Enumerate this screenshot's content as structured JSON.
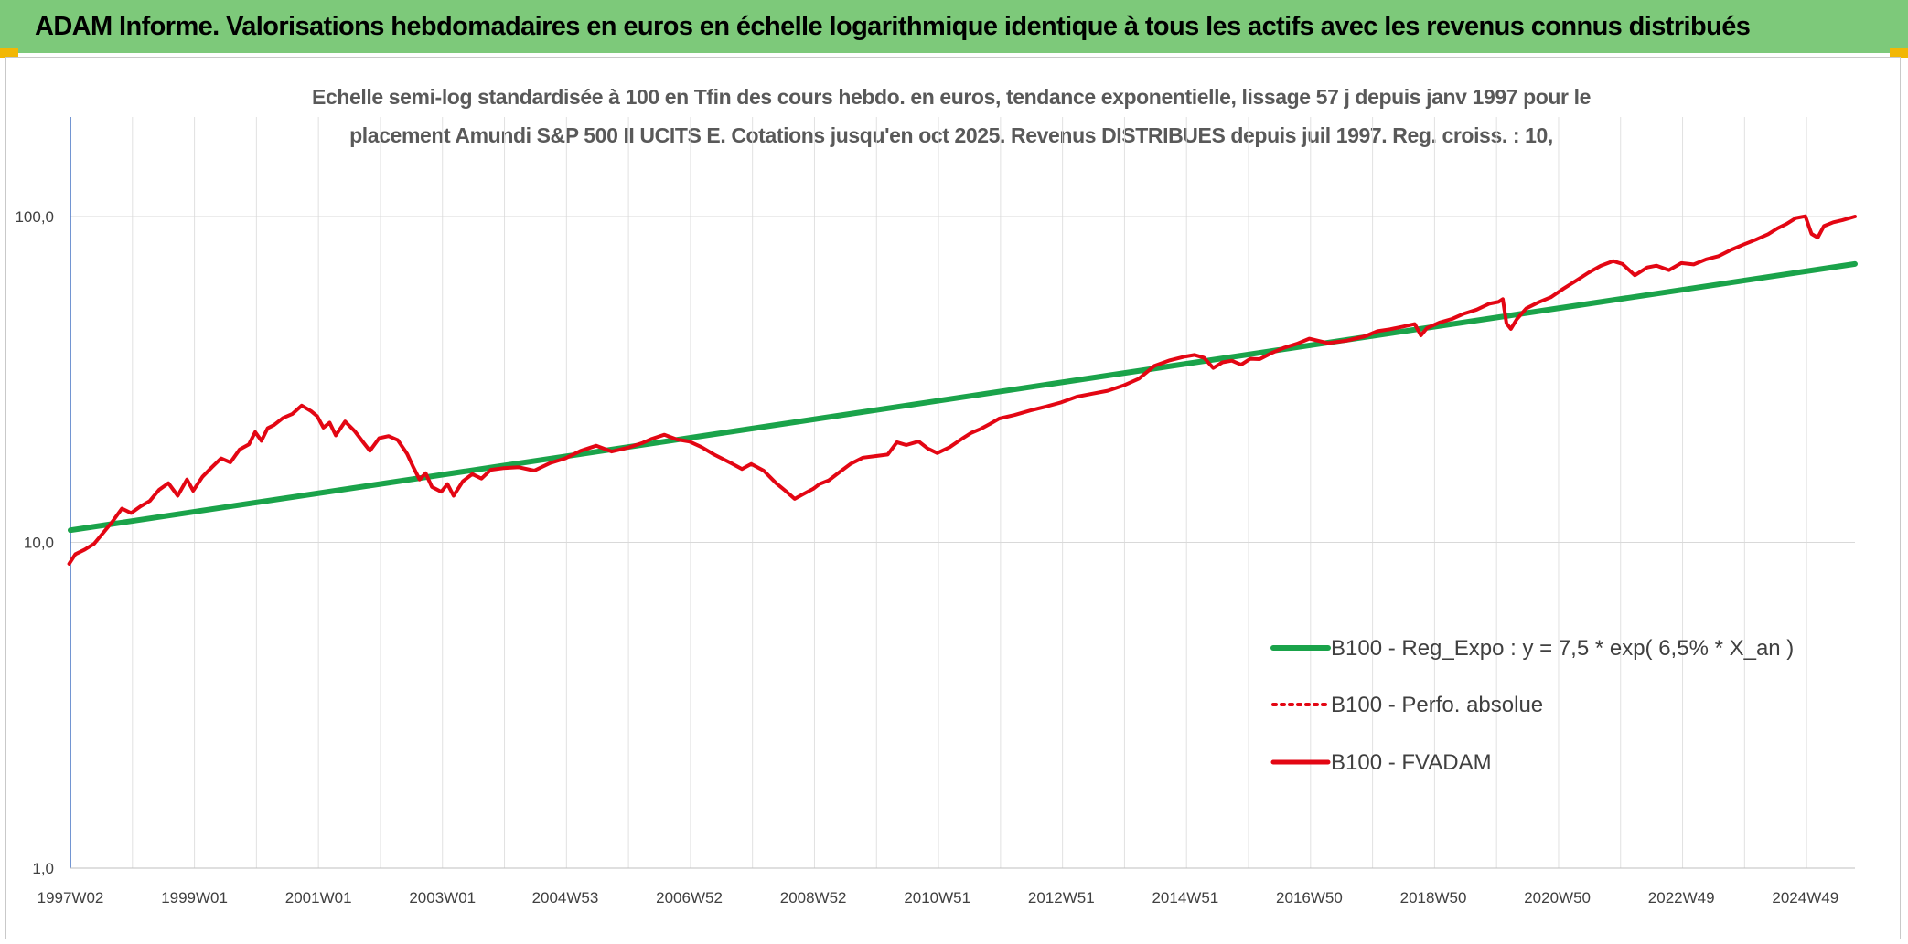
{
  "header": {
    "title": "ADAM Informe. Valorisations hebdomadaires en euros en échelle logarithmique identique à tous les actifs avec les revenus connus distribués"
  },
  "colors": {
    "header_bg": "#7dc97a",
    "corner_accent": "#f2b705",
    "series_main": "#e30613",
    "series_trend": "#1aa34a"
  },
  "chart_data": {
    "type": "line",
    "title_lines": [
      "Echelle semi-log standardisée à 100 en Tfin des cours hebdo. en euros, tendance exponentielle, lissage 57 j depuis janv 1997 pour le",
      "placement Amundi S&P 500 II UCITS E. Cotations jusqu'en oct 2025. Revenus DISTRIBUES depuis juil 1997. Reg. croiss. : 10,"
    ],
    "y_scale": "log",
    "ylim": [
      1,
      200
    ],
    "xlim": [
      1997.02,
      2025.8
    ],
    "y_ticks": [
      {
        "value": 1,
        "label": "1,0"
      },
      {
        "value": 10,
        "label": "10,0"
      },
      {
        "value": 100,
        "label": "100,0"
      }
    ],
    "x_ticks": [
      {
        "year": 1997.02,
        "label": "1997W02"
      },
      {
        "year": 1999.02,
        "label": "1999W01"
      },
      {
        "year": 2001.02,
        "label": "2001W01"
      },
      {
        "year": 2003.02,
        "label": "2003W01"
      },
      {
        "year": 2005.0,
        "label": "2004W53"
      },
      {
        "year": 2007.0,
        "label": "2006W52"
      },
      {
        "year": 2009.0,
        "label": "2008W52"
      },
      {
        "year": 2011.0,
        "label": "2010W51"
      },
      {
        "year": 2013.0,
        "label": "2012W51"
      },
      {
        "year": 2015.0,
        "label": "2014W51"
      },
      {
        "year": 2017.0,
        "label": "2016W50"
      },
      {
        "year": 2019.0,
        "label": "2018W50"
      },
      {
        "year": 2021.0,
        "label": "2020W50"
      },
      {
        "year": 2023.0,
        "label": "2022W49"
      },
      {
        "year": 2025.0,
        "label": "2024W49"
      }
    ],
    "grid": true,
    "legend_position": "right",
    "series": [
      {
        "name": "B100 - Reg_Expo : y = 7,5 * exp( 6,5% *  X_an )",
        "style": "solid-thick",
        "color": "#1aa34a",
        "x": [
          1997.02,
          2025.8
        ],
        "y": [
          10.9,
          71.5
        ]
      },
      {
        "name": "B100 - Perfo. absolue",
        "style": "dotted",
        "color": "#e30613",
        "x": [],
        "y": []
      },
      {
        "name": "B100 - FVADAM",
        "style": "solid",
        "color": "#e30613",
        "x": [
          1997.0,
          1997.1,
          1997.25,
          1997.4,
          1997.55,
          1997.7,
          1997.85,
          1998.0,
          1998.15,
          1998.3,
          1998.45,
          1998.6,
          1998.75,
          1998.9,
          1999.0,
          1999.15,
          1999.3,
          1999.45,
          1999.6,
          1999.75,
          1999.9,
          2000.0,
          2000.1,
          2000.2,
          2000.3,
          2000.45,
          2000.6,
          2000.75,
          2000.9,
          2001.0,
          2001.1,
          2001.2,
          2001.3,
          2001.45,
          2001.6,
          2001.75,
          2001.85,
          2002.0,
          2002.15,
          2002.3,
          2002.45,
          2002.55,
          2002.65,
          2002.75,
          2002.85,
          2003.0,
          2003.1,
          2003.2,
          2003.35,
          2003.5,
          2003.65,
          2003.8,
          2004.0,
          2004.25,
          2004.5,
          2004.75,
          2005.0,
          2005.25,
          2005.5,
          2005.75,
          2006.0,
          2006.25,
          2006.4,
          2006.6,
          2006.8,
          2007.0,
          2007.2,
          2007.4,
          2007.55,
          2007.7,
          2007.85,
          2008.0,
          2008.2,
          2008.4,
          2008.55,
          2008.7,
          2008.85,
          2009.0,
          2009.1,
          2009.25,
          2009.4,
          2009.6,
          2009.8,
          2010.0,
          2010.2,
          2010.35,
          2010.5,
          2010.7,
          2010.85,
          2011.0,
          2011.2,
          2011.4,
          2011.55,
          2011.7,
          2011.85,
          2012.0,
          2012.25,
          2012.5,
          2012.75,
          2013.0,
          2013.25,
          2013.5,
          2013.75,
          2014.0,
          2014.25,
          2014.5,
          2014.75,
          2015.0,
          2015.15,
          2015.3,
          2015.45,
          2015.6,
          2015.75,
          2015.9,
          2016.05,
          2016.2,
          2016.4,
          2016.6,
          2016.8,
          2017.0,
          2017.3,
          2017.6,
          2017.9,
          2018.1,
          2018.3,
          2018.5,
          2018.7,
          2018.8,
          2018.9,
          2019.1,
          2019.3,
          2019.5,
          2019.7,
          2019.9,
          2020.05,
          2020.12,
          2020.18,
          2020.25,
          2020.35,
          2020.5,
          2020.7,
          2020.9,
          2021.1,
          2021.3,
          2021.5,
          2021.7,
          2021.9,
          2022.05,
          2022.25,
          2022.45,
          2022.6,
          2022.8,
          2023.0,
          2023.2,
          2023.4,
          2023.6,
          2023.8,
          2024.0,
          2024.2,
          2024.4,
          2024.55,
          2024.7,
          2024.85,
          2025.0,
          2025.1,
          2025.2,
          2025.3,
          2025.45,
          2025.6,
          2025.8
        ],
        "y": [
          8.6,
          9.2,
          9.5,
          9.9,
          10.7,
          11.6,
          12.7,
          12.3,
          12.9,
          13.4,
          14.5,
          15.2,
          13.9,
          15.6,
          14.4,
          15.9,
          17.0,
          18.1,
          17.6,
          19.3,
          20.0,
          21.8,
          20.5,
          22.4,
          22.9,
          24.1,
          24.8,
          26.3,
          25.3,
          24.4,
          22.5,
          23.3,
          21.3,
          23.5,
          22.0,
          20.2,
          19.1,
          20.9,
          21.2,
          20.6,
          18.7,
          17.0,
          15.6,
          16.3,
          14.8,
          14.3,
          15.1,
          13.9,
          15.4,
          16.2,
          15.7,
          16.7,
          16.9,
          17.0,
          16.6,
          17.5,
          18.1,
          19.1,
          19.8,
          19.0,
          19.5,
          20.2,
          20.8,
          21.4,
          20.7,
          20.4,
          19.6,
          18.6,
          18.0,
          17.4,
          16.8,
          17.4,
          16.6,
          15.2,
          14.4,
          13.6,
          14.1,
          14.6,
          15.1,
          15.5,
          16.3,
          17.4,
          18.2,
          18.4,
          18.6,
          20.3,
          19.9,
          20.4,
          19.4,
          18.8,
          19.6,
          20.8,
          21.7,
          22.3,
          23.1,
          24.0,
          24.6,
          25.4,
          26.1,
          26.9,
          28.0,
          28.6,
          29.2,
          30.3,
          31.8,
          34.8,
          36.2,
          37.2,
          37.6,
          36.9,
          34.3,
          35.7,
          36.1,
          35.1,
          36.6,
          36.5,
          38.2,
          39.6,
          40.7,
          42.2,
          40.9,
          41.6,
          42.9,
          44.5,
          45.1,
          45.9,
          46.8,
          43.2,
          45.5,
          47.3,
          48.5,
          50.4,
          51.8,
          54.0,
          54.7,
          55.8,
          47.0,
          45.2,
          48.5,
          52.3,
          54.6,
          56.6,
          60.1,
          63.5,
          67.2,
          70.6,
          73.0,
          71.5,
          66.0,
          69.8,
          70.7,
          68.5,
          72.0,
          71.3,
          73.9,
          75.6,
          79.0,
          82.0,
          84.9,
          88.3,
          92.0,
          95.0,
          99.0,
          100.2,
          88.5,
          86.2,
          93.5,
          96.0,
          97.5,
          100.0
        ]
      }
    ]
  }
}
